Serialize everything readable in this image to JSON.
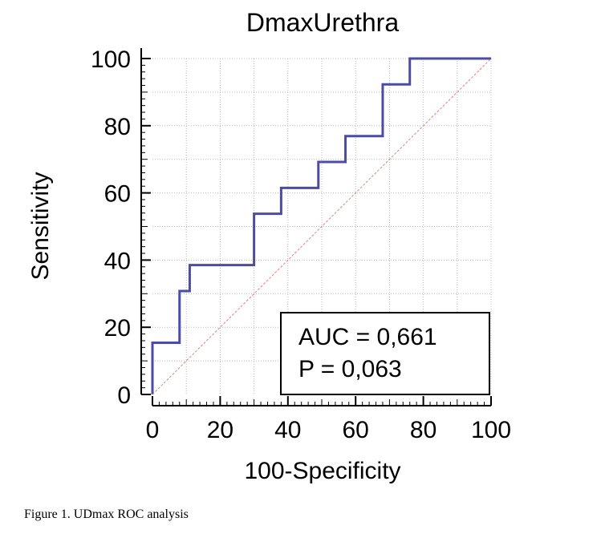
{
  "chart_data": {
    "type": "line",
    "title": "DmaxUrethra",
    "xlabel": "100-Specificity",
    "ylabel": "Sensitivity",
    "xlim": [
      0,
      100
    ],
    "ylim": [
      0,
      100
    ],
    "xticks": [
      "0",
      "20",
      "40",
      "60",
      "80",
      "100"
    ],
    "yticks": [
      "0",
      "20",
      "40",
      "60",
      "80",
      "100"
    ],
    "grid": true,
    "series": [
      {
        "style": "step",
        "color": "#4b4ba8",
        "x": [
          0,
          0,
          8,
          8,
          11,
          11,
          30,
          30,
          38,
          38,
          49,
          49,
          57,
          57,
          68,
          68,
          76,
          76,
          100
        ],
        "y": [
          0,
          15.4,
          15.4,
          30.8,
          30.8,
          38.5,
          38.5,
          53.8,
          53.8,
          61.5,
          61.5,
          69.2,
          69.2,
          76.9,
          76.9,
          92.3,
          92.3,
          100,
          100
        ]
      },
      {
        "style": "reference-diagonal",
        "color": "#e08080",
        "x": [
          0,
          100
        ],
        "y": [
          0,
          100
        ]
      }
    ],
    "annotations": [
      "AUC = 0,661",
      "P = 0,063"
    ]
  },
  "caption": "Figure 1. UDmax ROC analysis"
}
